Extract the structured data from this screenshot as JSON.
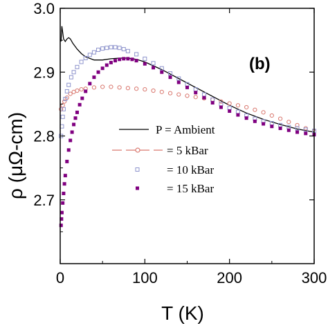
{
  "chart_data": {
    "type": "scatter",
    "panel_label": "(b)",
    "xlabel": "T (K)",
    "ylabel": "ρ (μΩ-cm)",
    "xlim": [
      0,
      300
    ],
    "ylim": [
      2.6,
      3.0
    ],
    "x_ticks": [
      0,
      100,
      200,
      300
    ],
    "x_tick_labels": [
      "0",
      "100",
      "200",
      "300"
    ],
    "y_ticks": [
      2.7,
      2.8,
      2.9,
      3.0
    ],
    "y_tick_labels": [
      "2.7",
      "2.8",
      "2.9",
      "3.0"
    ],
    "legend": {
      "placement": "center-right",
      "entries": [
        {
          "label": "P = Ambient",
          "marker": "line",
          "color": "#000000"
        },
        {
          "label": "= 5 kBar",
          "marker": "circle-dash",
          "color": "#d9776e"
        },
        {
          "label": "= 10 kBar",
          "marker": "open-square",
          "color": "#8d93cc"
        },
        {
          "label": "= 15 kBar",
          "marker": "filled-square",
          "color": "#800080"
        }
      ]
    },
    "series": [
      {
        "name": "P = Ambient",
        "style": "line",
        "color": "#000000",
        "x": [
          1,
          2,
          4,
          6,
          8,
          10,
          12,
          15,
          20,
          25,
          30,
          40,
          50,
          60,
          70,
          80,
          90,
          100,
          120,
          140,
          160,
          180,
          200,
          220,
          240,
          260,
          280,
          300
        ],
        "y": [
          2.948,
          2.972,
          2.952,
          2.948,
          2.952,
          2.954,
          2.952,
          2.945,
          2.936,
          2.929,
          2.924,
          2.919,
          2.919,
          2.921,
          2.922,
          2.922,
          2.92,
          2.916,
          2.904,
          2.89,
          2.876,
          2.862,
          2.848,
          2.836,
          2.826,
          2.818,
          2.811,
          2.806
        ]
      },
      {
        "name": "= 5 kBar",
        "style": "circle",
        "color": "#d9776e",
        "x": [
          1,
          3,
          5,
          8,
          12,
          16,
          20,
          25,
          30,
          40,
          50,
          60,
          70,
          80,
          90,
          100,
          110,
          120,
          130,
          140,
          150,
          160,
          170,
          180,
          190,
          200,
          210,
          220,
          230,
          240,
          250,
          260,
          270,
          280,
          290,
          300
        ],
        "y": [
          2.842,
          2.848,
          2.854,
          2.86,
          2.866,
          2.869,
          2.871,
          2.873,
          2.874,
          2.876,
          2.877,
          2.877,
          2.876,
          2.875,
          2.874,
          2.873,
          2.871,
          2.869,
          2.867,
          2.865,
          2.863,
          2.861,
          2.859,
          2.857,
          2.854,
          2.851,
          2.848,
          2.845,
          2.841,
          2.837,
          2.832,
          2.827,
          2.822,
          2.817,
          2.812,
          2.807
        ]
      },
      {
        "name": "= 10 kBar",
        "style": "open-square",
        "color": "#8d93cc",
        "x": [
          1,
          2,
          3,
          4,
          6,
          8,
          10,
          13,
          16,
          20,
          25,
          30,
          35,
          40,
          45,
          50,
          55,
          60,
          65,
          70,
          75,
          80,
          90,
          100,
          110,
          120,
          130,
          140,
          150,
          160,
          170,
          180,
          190,
          200,
          210,
          220,
          230,
          240,
          250,
          260,
          270,
          280,
          290,
          300
        ],
        "y": [
          2.8,
          2.815,
          2.83,
          2.842,
          2.858,
          2.87,
          2.88,
          2.892,
          2.9,
          2.908,
          2.916,
          2.922,
          2.927,
          2.931,
          2.935,
          2.937,
          2.938,
          2.939,
          2.939,
          2.938,
          2.936,
          2.933,
          2.928,
          2.921,
          2.914,
          2.906,
          2.898,
          2.89,
          2.881,
          2.873,
          2.865,
          2.857,
          2.85,
          2.844,
          2.838,
          2.832,
          2.827,
          2.823,
          2.82,
          2.817,
          2.814,
          2.812,
          2.81,
          2.808
        ]
      },
      {
        "name": "= 15 kBar",
        "style": "filled-square",
        "color": "#800080",
        "x": [
          1,
          1.5,
          2,
          3,
          4,
          5,
          6,
          8,
          10,
          12,
          14,
          16,
          18,
          20,
          23,
          26,
          30,
          35,
          40,
          45,
          50,
          55,
          60,
          65,
          70,
          75,
          80,
          85,
          90,
          100,
          110,
          120,
          130,
          140,
          150,
          160,
          170,
          180,
          190,
          200,
          210,
          220,
          230,
          240,
          250,
          260,
          270,
          280,
          290,
          300
        ],
        "y": [
          2.66,
          2.67,
          2.68,
          2.695,
          2.71,
          2.725,
          2.738,
          2.76,
          2.778,
          2.793,
          2.806,
          2.818,
          2.828,
          2.837,
          2.849,
          2.859,
          2.87,
          2.882,
          2.892,
          2.9,
          2.906,
          2.911,
          2.915,
          2.918,
          2.92,
          2.921,
          2.921,
          2.92,
          2.918,
          2.913,
          2.907,
          2.9,
          2.892,
          2.884,
          2.876,
          2.868,
          2.86,
          2.852,
          2.845,
          2.839,
          2.833,
          2.828,
          2.823,
          2.819,
          2.815,
          2.812,
          2.809,
          2.806,
          2.804,
          2.802
        ]
      }
    ]
  }
}
